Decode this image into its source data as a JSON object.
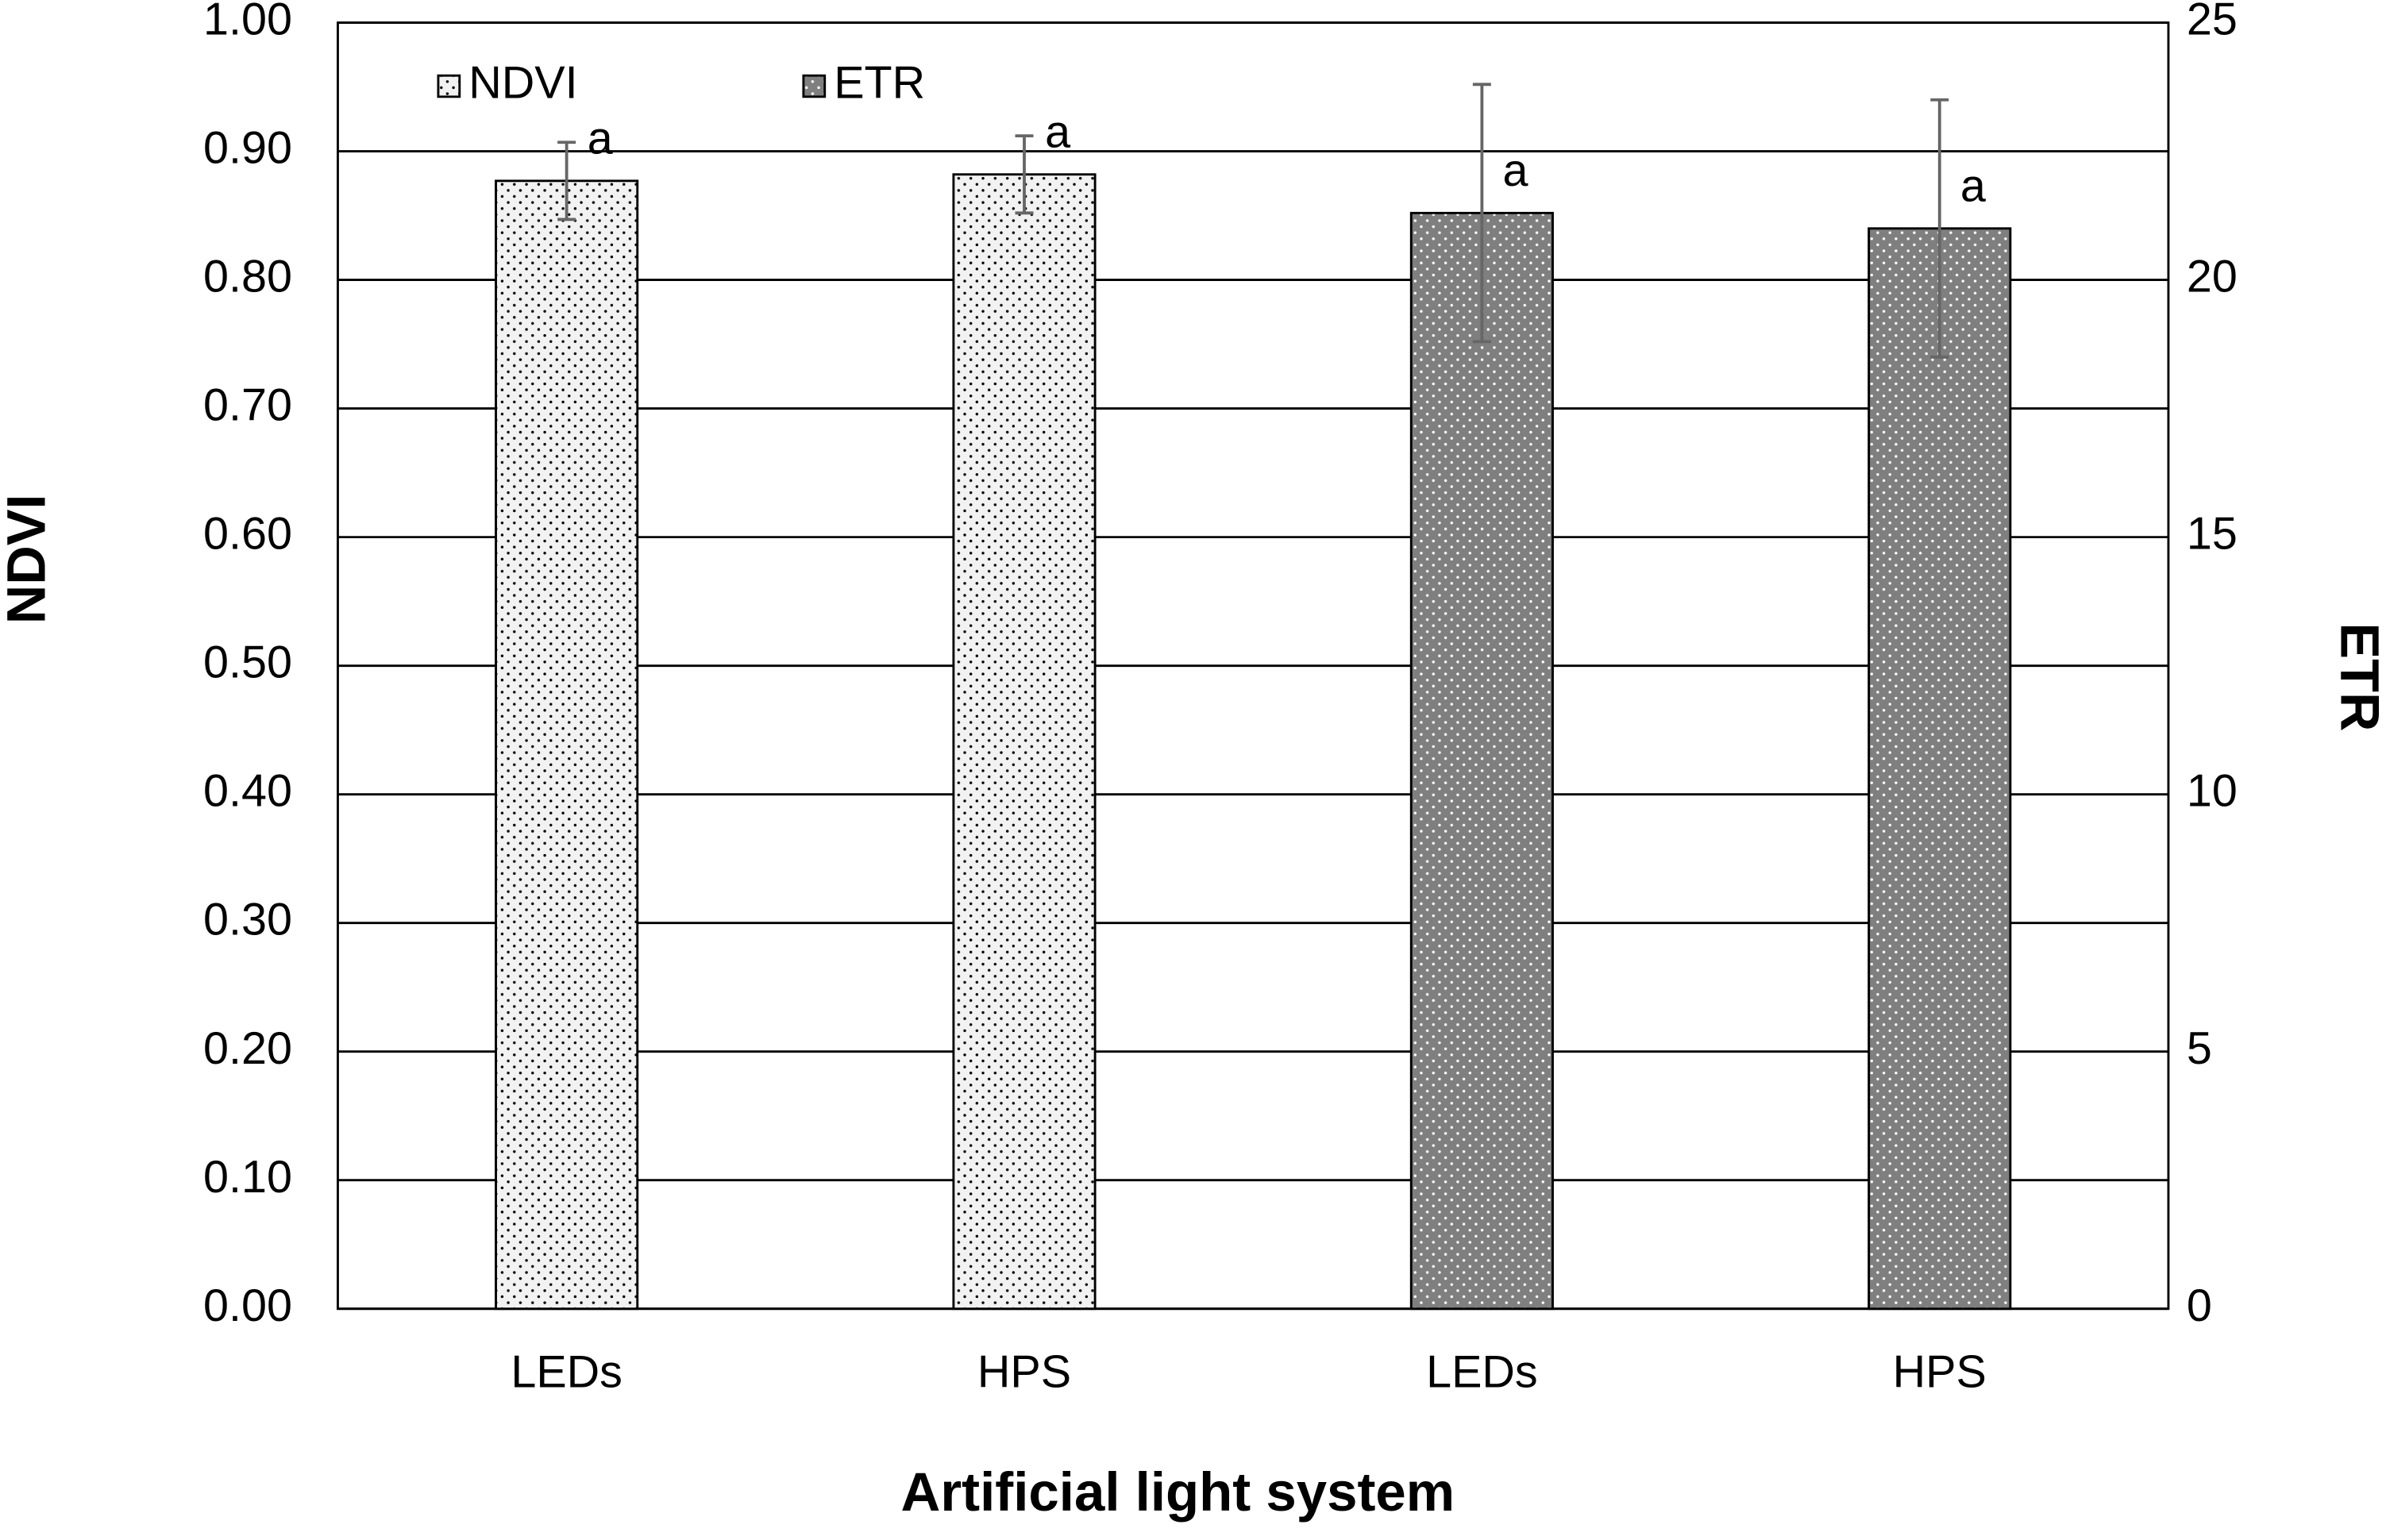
{
  "chart_data": {
    "type": "bar",
    "x_label": "Artificial light system",
    "y_label": "NDVI",
    "y2_label": "ETR",
    "categories": [
      "LEDs",
      "HPS",
      "LEDs",
      "HPS"
    ],
    "series": [
      {
        "name": "NDVI",
        "color": "#f2f2f2",
        "dot_color": "#000000",
        "values": [
          0.877,
          0.882,
          null,
          null
        ],
        "errors": [
          0.03,
          0.03,
          null,
          null
        ],
        "value_labels": [
          "a",
          "a",
          null,
          null
        ]
      },
      {
        "name": "ETR",
        "color": "#7f7f7f",
        "dot_color": "#ffffff",
        "axis": "y2",
        "values": [
          null,
          null,
          21.3,
          21.0
        ],
        "errors": [
          null,
          null,
          2.5,
          2.5
        ],
        "value_labels": [
          null,
          null,
          "a",
          "a"
        ]
      }
    ],
    "ylim": [
      0,
      1
    ],
    "yticks": [
      {
        "value": 0,
        "label": "0.00"
      },
      {
        "value": 0.1,
        "label": "0.10"
      },
      {
        "value": 0.2,
        "label": "0.20"
      },
      {
        "value": 0.3,
        "label": "0.30"
      },
      {
        "value": 0.4,
        "label": "0.40"
      },
      {
        "value": 0.5,
        "label": "0.50"
      },
      {
        "value": 0.6,
        "label": "0.60"
      },
      {
        "value": 0.7,
        "label": "0.70"
      },
      {
        "value": 0.8,
        "label": "0.80"
      },
      {
        "value": 0.9,
        "label": "0.90"
      },
      {
        "value": 1,
        "label": "1.00"
      }
    ],
    "y2lim": [
      0,
      25
    ],
    "y2ticks": [
      0,
      5,
      10,
      15,
      20,
      25
    ],
    "grid": true,
    "legend": "top-left"
  }
}
